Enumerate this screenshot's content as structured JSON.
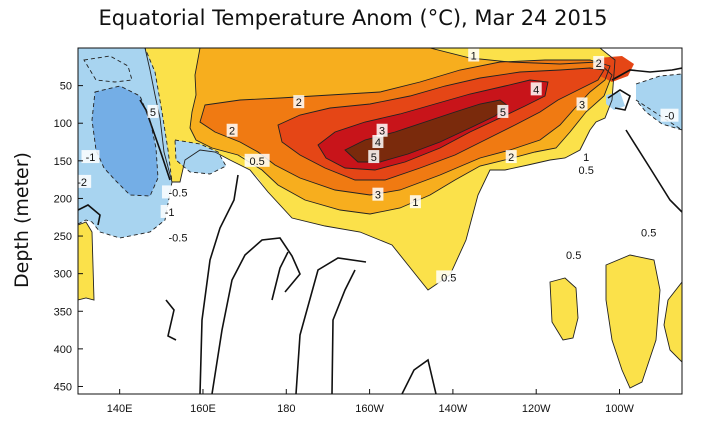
{
  "chart_data": {
    "type": "heatmap",
    "title": "Equatorial Temperature Anom (°C), Mar 24 2015",
    "xlabel": "",
    "ylabel": "Depth (meter)",
    "x_ticks": [
      "140E",
      "160E",
      "180",
      "160W",
      "140W",
      "120W",
      "100W"
    ],
    "x_tick_lons": [
      140,
      160,
      180,
      200,
      220,
      240,
      260
    ],
    "xlim": [
      130,
      275
    ],
    "y_ticks": [
      50,
      100,
      150,
      200,
      250,
      300,
      350,
      400,
      450
    ],
    "ylim": [
      0,
      460
    ],
    "colors": {
      "neg1": "#a8d4f0",
      "neg2": "#74aee6",
      "pos05": "#fbe14a",
      "pos1": "#f7ae1e",
      "pos2": "#f07a12",
      "pos3": "#e54616",
      "pos4": "#c8141a",
      "pos5": "#7a2a0c"
    },
    "contour_labels": [
      {
        "text": "1",
        "lon": 225,
        "depth": 10
      },
      {
        "text": "2",
        "lon": 255,
        "depth": 20
      },
      {
        "text": "2",
        "lon": 183,
        "depth": 72
      },
      {
        "text": "4",
        "lon": 240,
        "depth": 55
      },
      {
        "text": "5",
        "lon": 232,
        "depth": 85
      },
      {
        "text": "3",
        "lon": 251,
        "depth": 75
      },
      {
        "text": "3",
        "lon": 203,
        "depth": 110
      },
      {
        "text": "4",
        "lon": 202,
        "depth": 125
      },
      {
        "text": "5",
        "lon": 201,
        "depth": 145
      },
      {
        "text": "2",
        "lon": 167,
        "depth": 110
      },
      {
        "text": "0.5",
        "lon": 173,
        "depth": 150
      },
      {
        "text": "2",
        "lon": 234,
        "depth": 145
      },
      {
        "text": "1",
        "lon": 252,
        "depth": 145
      },
      {
        "text": "0.5",
        "lon": 252,
        "depth": 162
      },
      {
        "text": "3",
        "lon": 202,
        "depth": 195
      },
      {
        "text": "1",
        "lon": 211,
        "depth": 205
      },
      {
        "text": "0.5",
        "lon": 219,
        "depth": 305
      },
      {
        "text": "0.5",
        "lon": 249,
        "depth": 275
      },
      {
        "text": "0.5",
        "lon": 267,
        "depth": 245
      },
      {
        "text": "-1",
        "lon": 133,
        "depth": 145
      },
      {
        "text": "-2",
        "lon": 131,
        "depth": 178
      },
      {
        "text": "-0.5",
        "lon": 154,
        "depth": 192
      },
      {
        "text": "-1",
        "lon": 152,
        "depth": 218
      },
      {
        "text": "-0.5",
        "lon": 154,
        "depth": 252
      },
      {
        "text": "5",
        "lon": 148,
        "depth": 85
      },
      {
        "text": "-0",
        "lon": 272,
        "depth": 90
      }
    ]
  }
}
